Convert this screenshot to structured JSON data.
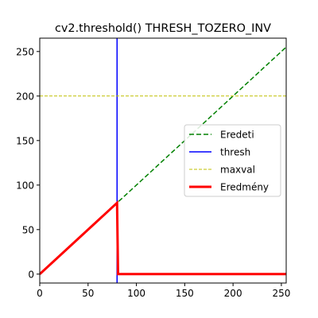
{
  "chart_data": {
    "type": "line",
    "title": "cv2.threshold() THRESH_TOZERO_INV",
    "xlabel": "",
    "ylabel": "",
    "xlim": [
      0,
      255
    ],
    "ylim": [
      -10,
      265
    ],
    "xticks": [
      0,
      50,
      100,
      150,
      200,
      250
    ],
    "yticks": [
      0,
      50,
      100,
      150,
      200,
      250
    ],
    "grid": false,
    "legend_position": "center-right",
    "series": [
      {
        "name": "Eredeti",
        "color": "#008000",
        "style": "dashed",
        "x": [
          0,
          255
        ],
        "y": [
          0,
          255
        ]
      },
      {
        "name": "thresh",
        "color": "#0000ff",
        "style": "solid",
        "orientation": "vertical",
        "x": [
          80,
          80
        ],
        "y": [
          -10,
          265
        ]
      },
      {
        "name": "maxval",
        "color": "#bfbf00",
        "style": "dashed",
        "orientation": "horizontal",
        "x": [
          0,
          255
        ],
        "y": [
          200,
          200
        ]
      },
      {
        "name": "Eredmény",
        "color": "#ff0000",
        "style": "solid",
        "x": [
          0,
          80,
          81,
          255
        ],
        "y": [
          0,
          80,
          0,
          0
        ]
      }
    ]
  }
}
